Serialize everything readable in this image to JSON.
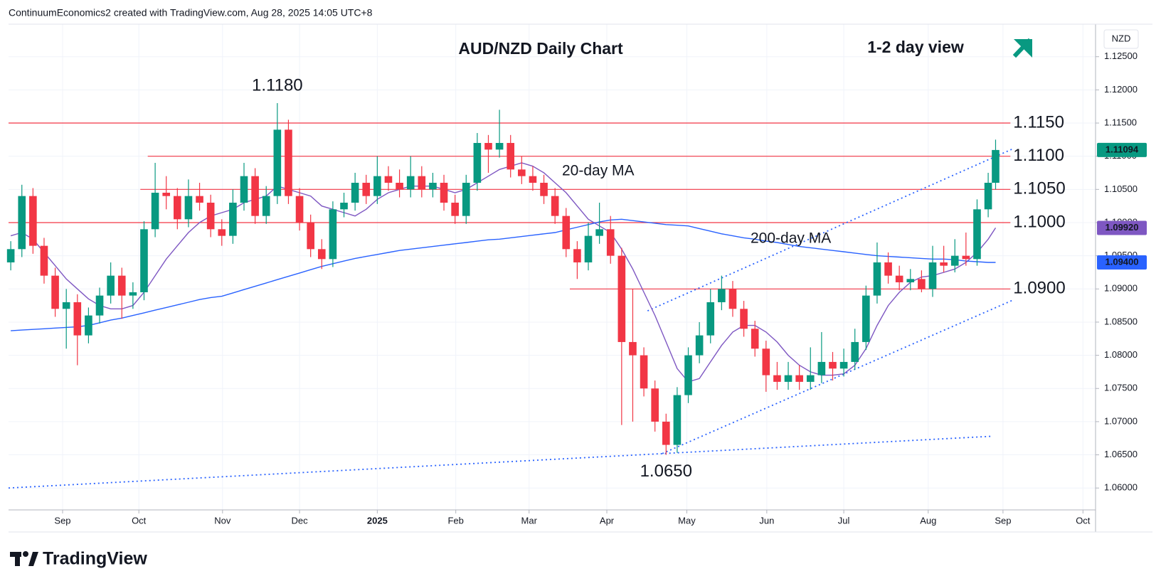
{
  "header": "ContinuumEconomics2 created with TradingView.com, Aug 28, 2025 14:05 UTC+8",
  "brand": "TradingView",
  "chart_data": {
    "type": "candlestick",
    "title": "AUD/NZD Daily Chart",
    "subtitle": "1-2 day view",
    "currency": "NZD",
    "up_color": "#089981",
    "down_color": "#f23645",
    "xlim": [
      -0.6,
      293
    ],
    "xticks": [
      {
        "value": 14,
        "label": "Sep"
      },
      {
        "value": 34.6,
        "label": "Oct"
      },
      {
        "value": 57.2,
        "label": "Nov"
      },
      {
        "value": 78,
        "label": "Dec"
      },
      {
        "value": 99,
        "label": "2025"
      },
      {
        "value": 120.2,
        "label": "Feb"
      },
      {
        "value": 140,
        "label": "Mar"
      },
      {
        "value": 161,
        "label": "Apr"
      },
      {
        "value": 182.6,
        "label": "May"
      },
      {
        "value": 204.2,
        "label": "Jun"
      },
      {
        "value": 225,
        "label": "Jul"
      },
      {
        "value": 247.8,
        "label": "Aug"
      },
      {
        "value": 268,
        "label": "Sep"
      },
      {
        "value": 289.6,
        "label": "Oct"
      }
    ],
    "ylim": [
      1.0567,
      1.1299
    ],
    "yticks": [
      {
        "value": 1.06,
        "label": "1.06000"
      },
      {
        "value": 1.065,
        "label": "1.06500"
      },
      {
        "value": 1.07,
        "label": "1.07000"
      },
      {
        "value": 1.075,
        "label": "1.07500"
      },
      {
        "value": 1.08,
        "label": "1.08000"
      },
      {
        "value": 1.085,
        "label": "1.08500"
      },
      {
        "value": 1.09,
        "label": "1.09000"
      },
      {
        "value": 1.095,
        "label": "1.09500"
      },
      {
        "value": 1.1,
        "label": "1.10000"
      },
      {
        "value": 1.105,
        "label": "1.10500"
      },
      {
        "value": 1.11,
        "label": "1.11000"
      },
      {
        "value": 1.115,
        "label": "1.11500"
      },
      {
        "value": 1.12,
        "label": "1.12000"
      },
      {
        "value": 1.125,
        "label": "1.12500"
      }
    ],
    "grid": true,
    "x": [
      0,
      3,
      6,
      9,
      12,
      15,
      18,
      21,
      24,
      27,
      30,
      33,
      36,
      39,
      42,
      45,
      48,
      51,
      54,
      57,
      60,
      63,
      66,
      69,
      72,
      75,
      78,
      81,
      84,
      87,
      90,
      93,
      96,
      99,
      102,
      105,
      108,
      111,
      114,
      117,
      120,
      123,
      126,
      129,
      132,
      135,
      138,
      141,
      144,
      147,
      150,
      153,
      156,
      159,
      162,
      165,
      168,
      171,
      174,
      177,
      180,
      183,
      186,
      189,
      192,
      195,
      198,
      201,
      204,
      207,
      210,
      213,
      216,
      219,
      222,
      225,
      228,
      231,
      234,
      237,
      240,
      243,
      246,
      249,
      252,
      255,
      258,
      261,
      264,
      266
    ],
    "open": [
      1.094,
      1.096,
      1.104,
      1.0965,
      1.092,
      1.087,
      1.088,
      1.083,
      1.086,
      1.089,
      1.092,
      1.089,
      1.0895,
      1.099,
      1.1045,
      1.104,
      1.1005,
      1.104,
      1.103,
      1.099,
      1.098,
      1.103,
      1.107,
      1.101,
      1.104,
      1.114,
      1.104,
      1.1,
      1.096,
      1.0945,
      1.102,
      1.103,
      1.106,
      1.104,
      1.107,
      1.106,
      1.105,
      1.107,
      1.105,
      1.106,
      1.103,
      1.101,
      1.106,
      1.112,
      1.111,
      1.112,
      1.108,
      1.107,
      1.106,
      1.104,
      1.101,
      1.096,
      1.094,
      1.098,
      1.099,
      1.095,
      1.082,
      1.08,
      1.075,
      1.07,
      1.0665,
      1.074,
      1.08,
      1.083,
      1.088,
      1.09,
      1.087,
      1.084,
      1.081,
      1.077,
      1.076,
      1.077,
      1.076,
      1.077,
      1.079,
      1.078,
      1.079,
      1.082,
      1.089,
      1.094,
      1.092,
      1.091,
      1.0915,
      1.09,
      1.094,
      1.0935,
      1.095,
      1.0945,
      1.102,
      1.106
    ],
    "high": [
      1.0972,
      1.1057,
      1.1052,
      1.0977,
      1.0932,
      1.09,
      1.0892,
      1.0872,
      1.0902,
      1.094,
      1.0932,
      1.091,
      1.1002,
      1.109,
      1.107,
      1.1052,
      1.1065,
      1.106,
      1.1042,
      1.1005,
      1.105,
      1.109,
      1.1082,
      1.1055,
      1.118,
      1.1155,
      1.1052,
      1.1012,
      1.0975,
      1.1032,
      1.1045,
      1.1075,
      1.1072,
      1.11,
      1.1085,
      1.108,
      1.11,
      1.1085,
      1.1075,
      1.1072,
      1.1042,
      1.1072,
      1.1135,
      1.1132,
      1.117,
      1.1132,
      1.11,
      1.1085,
      1.1072,
      1.1052,
      1.1022,
      1.0972,
      1.1,
      1.103,
      1.101,
      1.0962,
      1.09,
      1.0812,
      1.0762,
      1.0712,
      1.0752,
      1.0812,
      1.085,
      1.09,
      1.092,
      1.0912,
      1.0882,
      1.0852,
      1.0822,
      1.079,
      1.079,
      1.0785,
      1.0812,
      1.0835,
      1.0805,
      1.081,
      1.084,
      1.0905,
      1.097,
      1.0955,
      1.0935,
      1.093,
      1.0928,
      1.0965,
      1.0965,
      1.0975,
      1.0985,
      1.1035,
      1.1075,
      1.1125
    ],
    "low": [
      1.0928,
      1.0948,
      1.0953,
      1.0908,
      1.0858,
      1.081,
      1.0785,
      1.0818,
      1.0848,
      1.0878,
      1.0855,
      1.087,
      1.0883,
      1.0978,
      1.102,
      1.099,
      1.0993,
      1.1018,
      1.0978,
      1.0965,
      1.0968,
      1.1018,
      1.0998,
      1.0998,
      1.1028,
      1.1028,
      1.0988,
      1.0948,
      1.093,
      1.0933,
      1.1008,
      1.1018,
      1.1028,
      1.1028,
      1.1048,
      1.1038,
      1.1038,
      1.1038,
      1.1038,
      1.1018,
      1.0998,
      1.0998,
      1.1048,
      1.1075,
      1.1098,
      1.1068,
      1.1058,
      1.1048,
      1.1028,
      1.0998,
      1.0948,
      1.0915,
      1.0928,
      1.0968,
      1.0938,
      1.0695,
      1.07,
      1.0738,
      1.0685,
      1.065,
      1.0653,
      1.0728,
      1.0788,
      1.0818,
      1.0868,
      1.0858,
      1.0828,
      1.0798,
      1.0745,
      1.0748,
      1.0748,
      1.0748,
      1.0748,
      1.0758,
      1.0762,
      1.0768,
      1.0778,
      1.0808,
      1.0878,
      1.0908,
      1.0898,
      1.0898,
      1.0895,
      1.0888,
      1.0925,
      1.0925,
      1.0935,
      1.0935,
      1.1008,
      1.105
    ],
    "close": [
      1.096,
      1.104,
      1.0965,
      1.092,
      1.087,
      1.088,
      1.083,
      1.086,
      1.089,
      1.092,
      1.089,
      1.0895,
      1.099,
      1.1045,
      1.104,
      1.1005,
      1.104,
      1.103,
      1.099,
      1.098,
      1.103,
      1.107,
      1.101,
      1.104,
      1.114,
      1.104,
      1.1,
      1.096,
      1.0945,
      1.102,
      1.103,
      1.106,
      1.104,
      1.107,
      1.106,
      1.105,
      1.107,
      1.105,
      1.106,
      1.103,
      1.101,
      1.106,
      1.112,
      1.111,
      1.112,
      1.108,
      1.107,
      1.106,
      1.104,
      1.101,
      1.096,
      1.094,
      1.098,
      1.099,
      1.095,
      1.082,
      1.08,
      1.075,
      1.07,
      1.0665,
      1.074,
      1.08,
      1.083,
      1.088,
      1.09,
      1.087,
      1.084,
      1.081,
      1.077,
      1.076,
      1.077,
      1.076,
      1.077,
      1.079,
      1.078,
      1.079,
      1.082,
      1.089,
      1.094,
      1.092,
      1.091,
      1.0915,
      1.09,
      1.094,
      1.0935,
      1.095,
      1.0945,
      1.102,
      1.106,
      1.11094
    ],
    "series": [
      {
        "name": "20-day MA",
        "color": "#7e57c2",
        "values": [
          1.098,
          1.0985,
          1.0975,
          1.0955,
          1.0935,
          1.0915,
          1.09,
          1.0885,
          1.0875,
          1.087,
          1.087,
          1.0875,
          1.0895,
          1.092,
          1.0945,
          1.0965,
          1.0985,
          1.1,
          1.101,
          1.1015,
          1.102,
          1.103,
          1.1035,
          1.104,
          1.1055,
          1.105,
          1.1045,
          1.104,
          1.1025,
          1.102,
          1.1015,
          1.101,
          1.102,
          1.1035,
          1.1045,
          1.105,
          1.1055,
          1.1055,
          1.1055,
          1.105,
          1.1045,
          1.105,
          1.106,
          1.107,
          1.108,
          1.1085,
          1.109,
          1.1085,
          1.1075,
          1.106,
          1.1045,
          1.1025,
          1.1005,
          1.0995,
          1.0985,
          1.096,
          1.093,
          1.0895,
          1.086,
          1.082,
          1.078,
          1.076,
          1.0765,
          1.079,
          1.0815,
          1.0835,
          1.0845,
          1.0845,
          1.0835,
          1.082,
          1.08,
          1.0785,
          1.0775,
          1.077,
          1.077,
          1.0772,
          1.0785,
          1.081,
          1.0845,
          1.0875,
          1.0895,
          1.091,
          1.0918,
          1.092,
          1.0925,
          1.093,
          1.094,
          1.0955,
          1.0975,
          1.0992
        ]
      },
      {
        "name": "200-day MA",
        "color": "#2962ff",
        "values": [
          1.0837,
          1.0838,
          1.0839,
          1.084,
          1.0841,
          1.0842,
          1.0843,
          1.0845,
          1.0849,
          1.0853,
          1.0856,
          1.086,
          1.0864,
          1.0868,
          1.0872,
          1.0876,
          1.088,
          1.0884,
          1.0887,
          1.0889,
          1.0894,
          1.0899,
          1.0904,
          1.0909,
          1.0914,
          1.0919,
          1.0924,
          1.0929,
          1.0934,
          1.0938,
          1.0942,
          1.0946,
          1.0949,
          1.0952,
          1.0955,
          1.0958,
          1.096,
          1.0962,
          1.0964,
          1.0966,
          1.0968,
          1.097,
          1.0972,
          1.0974,
          1.0975,
          1.0977,
          1.0979,
          1.0981,
          1.0983,
          1.0985,
          1.0989,
          1.0993,
          1.0997,
          1.1001,
          1.1004,
          1.1005,
          1.1003,
          1.1001,
          1.0999,
          1.0997,
          1.0996,
          1.0995,
          1.0991,
          1.0987,
          1.0983,
          1.098,
          1.0977,
          1.0975,
          1.0972,
          1.097,
          1.0967,
          1.0964,
          1.0962,
          1.096,
          1.0958,
          1.0956,
          1.0954,
          1.0952,
          1.095,
          1.0949,
          1.0948,
          1.0947,
          1.0946,
          1.0945,
          1.0945,
          1.0944,
          1.0942,
          1.0941,
          1.094,
          1.094
        ]
      }
    ],
    "levels": [
      {
        "value": 1.115,
        "label": "1.1150",
        "x0": -0.6
      },
      {
        "value": 1.11,
        "label": "1.1100",
        "x0": 37
      },
      {
        "value": 1.105,
        "label": "1.1050",
        "x0": 35
      },
      {
        "value": 1.1,
        "label": "1.1000",
        "x0": -0.6
      },
      {
        "value": 1.09,
        "label": "1.0900",
        "x0": 151
      }
    ],
    "level_color": "#f23645",
    "level_end": 270,
    "trendlines": [
      {
        "x": [
          -0.6,
          265
        ],
        "y": [
          1.06,
          1.0678
        ]
      },
      {
        "x": [
          176,
          271
        ],
        "y": [
          1.0652,
          1.0884
        ]
      },
      {
        "x": [
          172,
          271
        ],
        "y": [
          1.0867,
          1.1112
        ]
      }
    ],
    "trend_color": "#2962ff",
    "annotations": [
      {
        "value": 1.118,
        "label": "1.1180",
        "x": 72
      },
      {
        "value": 1.065,
        "label": "1.0650",
        "x": 177
      }
    ],
    "price_labels": [
      {
        "value": 1.11094,
        "label": "1.11094",
        "color": "#089981"
      },
      {
        "value": 1.0992,
        "label": "1.09920",
        "color": "#7e57c2"
      },
      {
        "value": 1.094,
        "label": "1.09400",
        "color": "#2962ff"
      }
    ]
  }
}
